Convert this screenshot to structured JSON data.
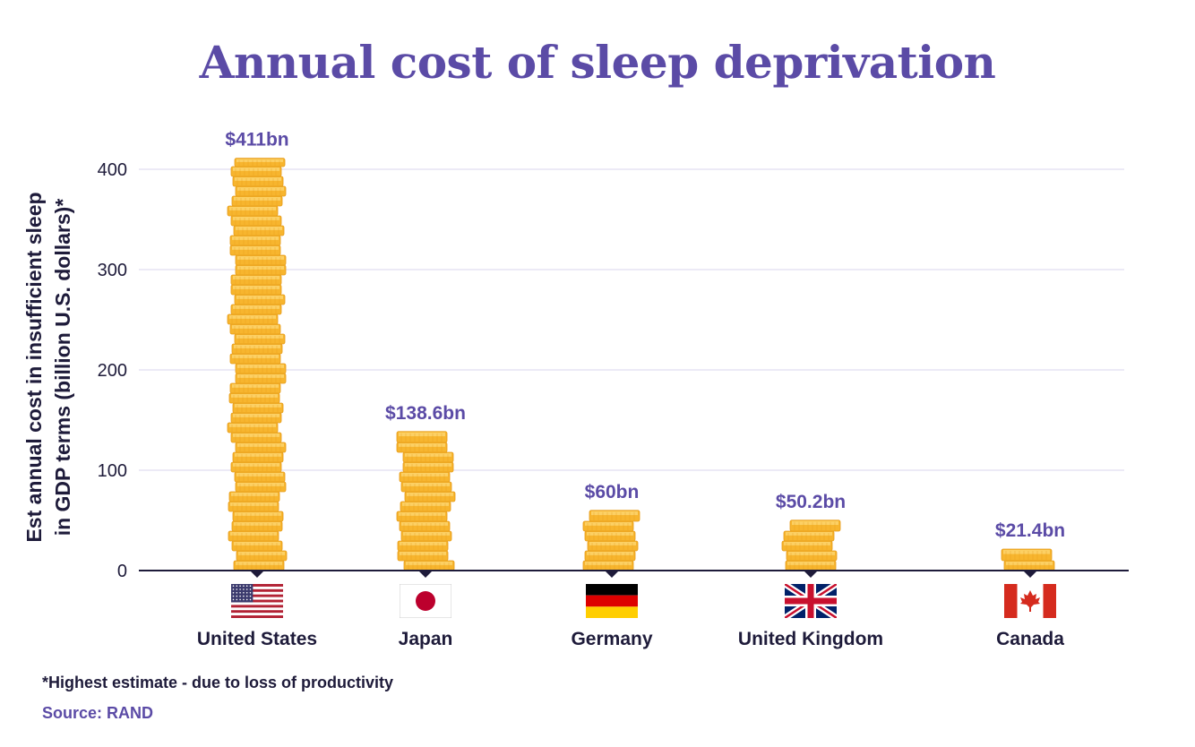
{
  "colors": {
    "accent": "#5b4ba6",
    "text": "#1e1b3a",
    "grid": "#d9d6ec",
    "coin": "#f7b52e",
    "coin_light": "#fcd36a",
    "coin_dark": "#e59a17"
  },
  "chart_data": {
    "type": "bar",
    "title": "Annual cost of sleep deprivation",
    "ylabel_line1": "Est annual cost in insufficient sleep",
    "ylabel_line2": "in GDP terms (billion U.S. dollars)*",
    "xlabel": "",
    "ylim": [
      0,
      400
    ],
    "yticks": [
      0,
      100,
      200,
      300,
      400
    ],
    "grid": true,
    "categories": [
      "United States",
      "Japan",
      "Germany",
      "United Kingdom",
      "Canada"
    ],
    "values": [
      411,
      138.6,
      60,
      50.2,
      21.4
    ],
    "value_labels": [
      "$411bn",
      "$138.6bn",
      "$60bn",
      "$50.2bn",
      "$21.4bn"
    ],
    "flags": [
      "us-flag-icon",
      "japan-flag-icon",
      "germany-flag-icon",
      "uk-flag-icon",
      "canada-flag-icon"
    ]
  },
  "footnote": "*Highest estimate - due to loss of productivity",
  "source": "Source: RAND"
}
